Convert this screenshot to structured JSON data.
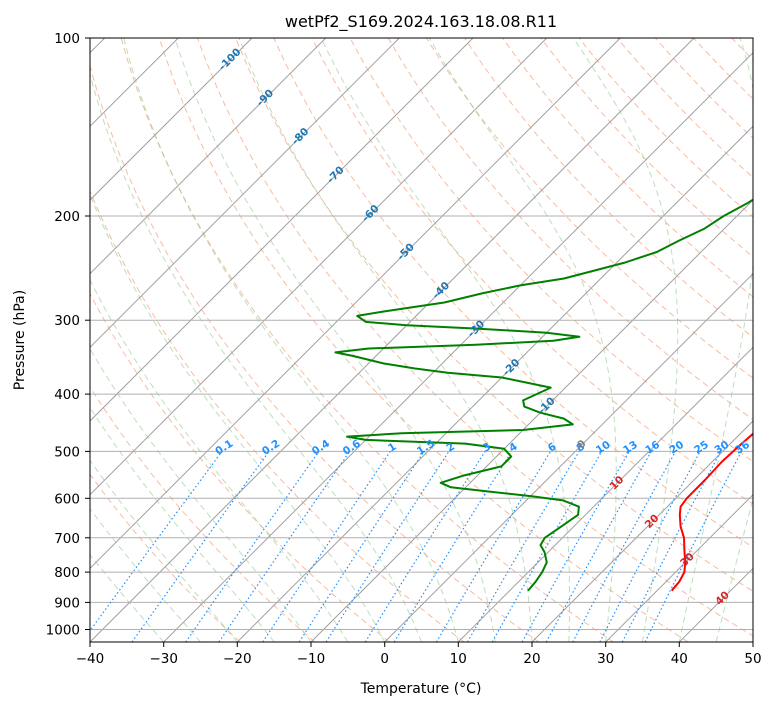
{
  "chart_data": {
    "type": "line",
    "title": "wetPf2_S169.2024.163.18.08.R11",
    "xlabel": "Temperature (°C)",
    "ylabel": "Pressure (hPa)",
    "xlim": [
      -40,
      50
    ],
    "ylim": [
      1050,
      100
    ],
    "y_scale": "log",
    "skew_deg": 45,
    "grid": true,
    "x_ticks": [
      -40,
      -30,
      -20,
      -10,
      0,
      10,
      20,
      30,
      40,
      50
    ],
    "x_tick_labels": [
      "−40",
      "−30",
      "−20",
      "−10",
      "0",
      "10",
      "20",
      "30",
      "40",
      "50"
    ],
    "y_ticks": [
      100,
      200,
      300,
      400,
      500,
      600,
      700,
      800,
      900,
      1000
    ],
    "y_tick_labels": [
      "100",
      "200",
      "300",
      "400",
      "500",
      "600",
      "700",
      "800",
      "900",
      "1000"
    ],
    "series": [
      {
        "color": "#ff0000",
        "points": [
          [
            860,
            32.0
          ],
          [
            830,
            31.8
          ],
          [
            800,
            31.2
          ],
          [
            770,
            30.0
          ],
          [
            740,
            28.5
          ],
          [
            700,
            26.5
          ],
          [
            670,
            24.5
          ],
          [
            640,
            22.8
          ],
          [
            620,
            21.8
          ],
          [
            600,
            21.5
          ],
          [
            560,
            21.5
          ],
          [
            520,
            21.3
          ],
          [
            490,
            21.5
          ],
          [
            460,
            21.8
          ],
          [
            440,
            22.3
          ],
          [
            425,
            22.3
          ],
          [
            410,
            21.8
          ],
          [
            390,
            20.8
          ],
          [
            370,
            20.0
          ],
          [
            350,
            19.5
          ],
          [
            330,
            18.8
          ],
          [
            310,
            17.2
          ],
          [
            290,
            15.3
          ],
          [
            270,
            12.5
          ],
          [
            250,
            10.2
          ],
          [
            230,
            7.6
          ],
          [
            210,
            4.6
          ],
          [
            190,
            1.8
          ],
          [
            170,
            -1.0
          ],
          [
            155,
            -3.0
          ],
          [
            140,
            -4.5
          ],
          [
            130,
            -6.2
          ],
          [
            120,
            -8.2
          ],
          [
            110,
            -10.0
          ],
          [
            104,
            -11.0
          ],
          [
            100,
            -11.5
          ]
        ]
      },
      {
        "color": "#008000",
        "points": [
          [
            860,
            12.5
          ],
          [
            830,
            12.3
          ],
          [
            800,
            11.9
          ],
          [
            770,
            11.2
          ],
          [
            740,
            9.5
          ],
          [
            720,
            8.0
          ],
          [
            700,
            7.6
          ],
          [
            670,
            8.3
          ],
          [
            640,
            9.0
          ],
          [
            620,
            8.0
          ],
          [
            605,
            5.0
          ],
          [
            595,
            0.0
          ],
          [
            585,
            -6.0
          ],
          [
            575,
            -12.0
          ],
          [
            565,
            -14.0
          ],
          [
            550,
            -12.0
          ],
          [
            530,
            -8.0
          ],
          [
            510,
            -8.0
          ],
          [
            495,
            -10.0
          ],
          [
            485,
            -16.0
          ],
          [
            478,
            -30.0
          ],
          [
            472,
            -33.0
          ],
          [
            466,
            -26.0
          ],
          [
            460,
            -10.0
          ],
          [
            450,
            -4.0
          ],
          [
            440,
            -6.0
          ],
          [
            430,
            -10.0
          ],
          [
            420,
            -13.0
          ],
          [
            410,
            -14.0
          ],
          [
            390,
            -12.0
          ],
          [
            375,
            -20.0
          ],
          [
            368,
            -28.0
          ],
          [
            362,
            -33.0
          ],
          [
            355,
            -38.0
          ],
          [
            345,
            -43.0
          ],
          [
            340,
            -46.0
          ],
          [
            335,
            -42.0
          ],
          [
            330,
            -28.0
          ],
          [
            325,
            -18.0
          ],
          [
            320,
            -15.0
          ],
          [
            315,
            -20.0
          ],
          [
            310,
            -30.0
          ],
          [
            306,
            -40.0
          ],
          [
            302,
            -46.0
          ],
          [
            295,
            -48.0
          ],
          [
            290,
            -45.0
          ],
          [
            280,
            -38.0
          ],
          [
            270,
            -34.0
          ],
          [
            262,
            -30.0
          ],
          [
            255,
            -25.0
          ],
          [
            240,
            -19.0
          ],
          [
            230,
            -16.0
          ],
          [
            220,
            -14.5
          ],
          [
            210,
            -12.7
          ],
          [
            200,
            -11.8
          ],
          [
            190,
            -10.3
          ],
          [
            180,
            -9.2
          ],
          [
            170,
            -8.4
          ],
          [
            160,
            -7.5
          ],
          [
            150,
            -8.1
          ],
          [
            140,
            -8.5
          ],
          [
            130,
            -8.1
          ],
          [
            120,
            -6.1
          ],
          [
            110,
            -4.8
          ],
          [
            104,
            -4.5
          ],
          [
            100,
            -3.5
          ]
        ]
      }
    ],
    "mixing_ratio_lines": {
      "color": "#1e90ff",
      "values": [
        0.1,
        0.2,
        0.4,
        0.6,
        1,
        1.5,
        2,
        3,
        4,
        6,
        8,
        10,
        13,
        16,
        20,
        25,
        30,
        36
      ],
      "labels": [
        "0.1",
        "0.2",
        "0.4",
        "0.6",
        "1",
        "1.5",
        "2",
        "3",
        "4",
        "6",
        "8",
        "10",
        "13",
        "16",
        "20",
        "25",
        "30",
        "36"
      ]
    },
    "isotherm_labels": [
      {
        "temp": -100,
        "label": "-100",
        "color": "#1f77b4"
      },
      {
        "temp": -90,
        "label": "-90",
        "color": "#1f77b4"
      },
      {
        "temp": -80,
        "label": "-80",
        "color": "#1f77b4"
      },
      {
        "temp": -70,
        "label": "-70",
        "color": "#1f77b4"
      },
      {
        "temp": -60,
        "label": "-60",
        "color": "#1f77b4"
      },
      {
        "temp": -50,
        "label": "-50",
        "color": "#1f77b4"
      },
      {
        "temp": -40,
        "label": "-40",
        "color": "#1f77b4"
      },
      {
        "temp": -30,
        "label": "-30",
        "color": "#1f77b4"
      },
      {
        "temp": -20,
        "label": "-20",
        "color": "#1f77b4"
      },
      {
        "temp": -10,
        "label": "-10",
        "color": "#1f77b4"
      },
      {
        "temp": 0,
        "label": "0",
        "color": "#808080"
      },
      {
        "temp": 10,
        "label": "10",
        "color": "#d62728"
      },
      {
        "temp": 20,
        "label": "20",
        "color": "#d62728"
      },
      {
        "temp": 30,
        "label": "30",
        "color": "#d62728"
      },
      {
        "temp": 40,
        "label": "40",
        "color": "#d62728"
      }
    ]
  }
}
